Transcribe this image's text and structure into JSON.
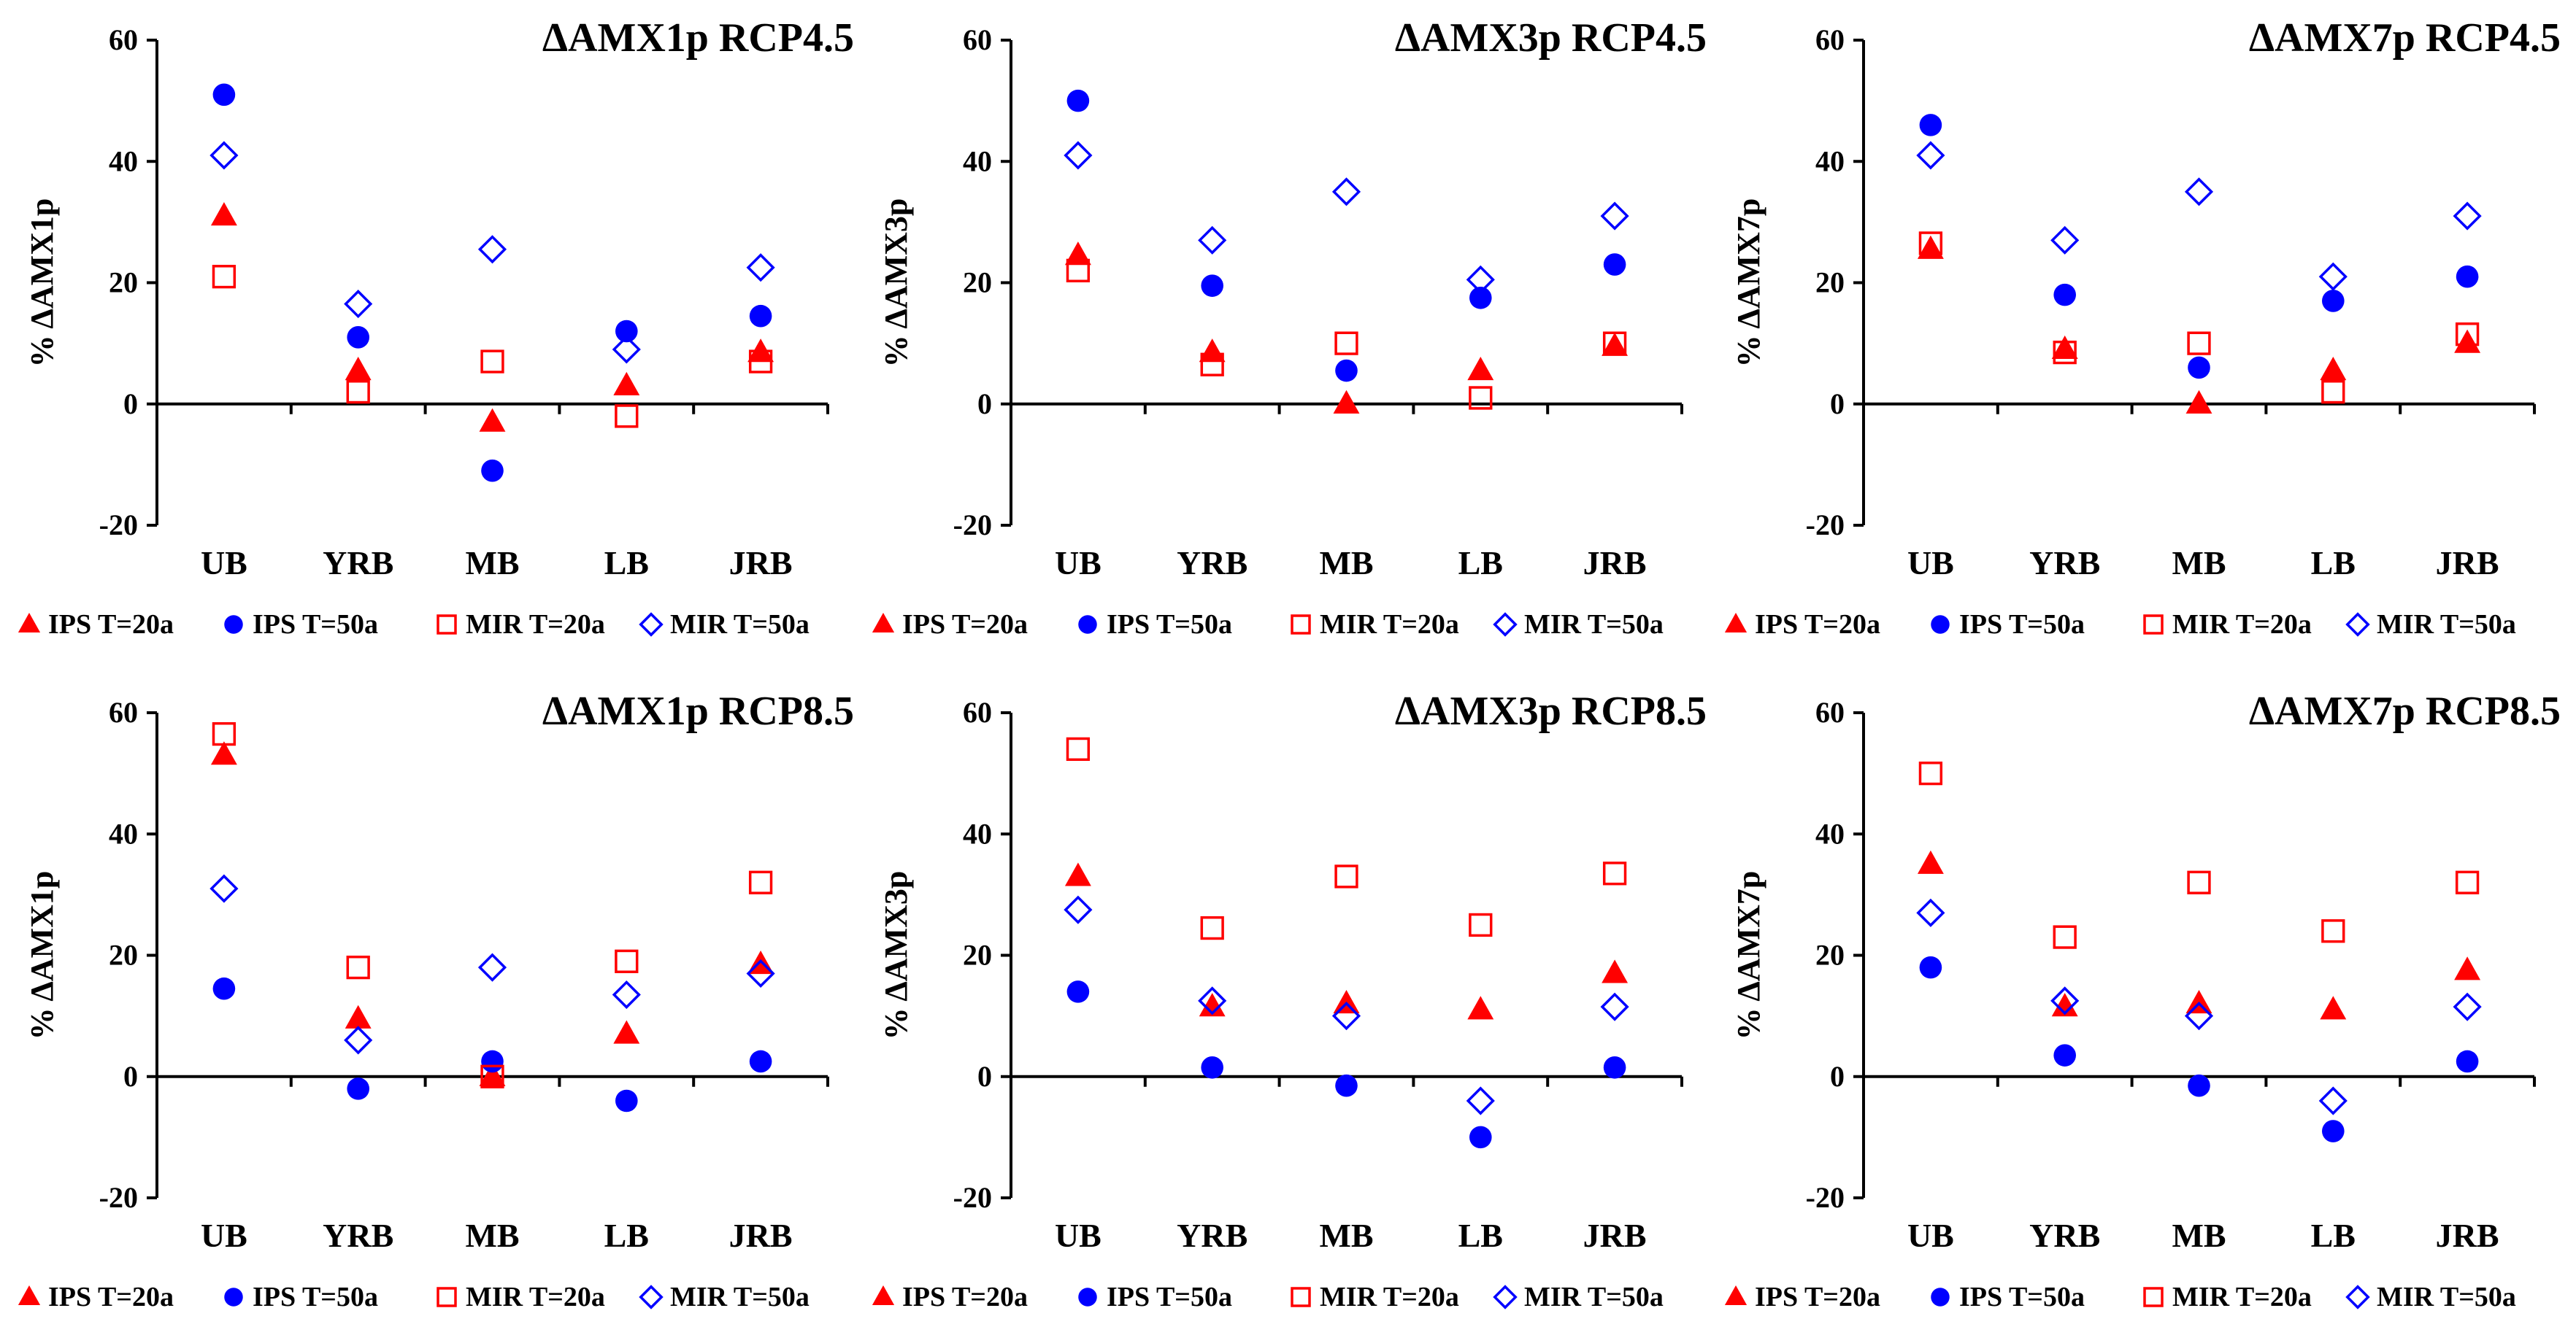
{
  "colors": {
    "ips": "#ff0000",
    "mir_square": "#ff0000",
    "ips_circle": "#0000ff",
    "mir_diamond": "#0000ff",
    "axis": "#000000"
  },
  "chart_data": [
    {
      "type": "scatter",
      "title": "ΔAMX1p RCP4.5",
      "ylabel": "% ΔAMX1p",
      "xlabel": "",
      "ylim": [
        -20,
        60
      ],
      "yticks": [
        "60",
        "40",
        "20",
        "0",
        "-20"
      ],
      "categories": [
        "UB",
        "YRB",
        "MB",
        "LB",
        "JRB"
      ],
      "legend": [
        "IPS T=20a",
        "IPS T=50a",
        "MIR T=20a",
        "MIR T=50a"
      ],
      "series": [
        {
          "name": "IPS T=20a",
          "values": [
            31,
            5.5,
            -3,
            3,
            8.5
          ]
        },
        {
          "name": "IPS T=50a",
          "values": [
            51,
            11,
            -11,
            12,
            14.5
          ]
        },
        {
          "name": "MIR T=20a",
          "values": [
            21,
            2,
            7,
            -2,
            7
          ]
        },
        {
          "name": "MIR T=50a",
          "values": [
            41,
            16.5,
            25.5,
            9,
            22.5
          ]
        }
      ]
    },
    {
      "type": "scatter",
      "title": "ΔAMX3p RCP4.5",
      "ylabel": "% ΔAMX3p",
      "xlabel": "",
      "ylim": [
        -20,
        60
      ],
      "yticks": [
        "60",
        "40",
        "20",
        "0",
        "-20"
      ],
      "categories": [
        "UB",
        "YRB",
        "MB",
        "LB",
        "JRB"
      ],
      "legend": [
        "IPS T=20a",
        "IPS T=50a",
        "MIR T=20a",
        "MIR T=50a"
      ],
      "series": [
        {
          "name": "IPS T=20a",
          "values": [
            24.5,
            8.5,
            0,
            5.5,
            9.5
          ]
        },
        {
          "name": "IPS T=50a",
          "values": [
            50,
            19.5,
            5.5,
            17.5,
            23
          ]
        },
        {
          "name": "MIR T=20a",
          "values": [
            22,
            6.5,
            10,
            1,
            10
          ]
        },
        {
          "name": "MIR T=50a",
          "values": [
            41,
            27,
            35,
            20.5,
            31
          ]
        }
      ]
    },
    {
      "type": "scatter",
      "title": "ΔAMX7p RCP4.5",
      "ylabel": "% ΔAMX7p",
      "xlabel": "",
      "ylim": [
        -20,
        60
      ],
      "yticks": [
        "60",
        "40",
        "20",
        "0",
        "-20"
      ],
      "categories": [
        "UB",
        "YRB",
        "MB",
        "LB",
        "JRB"
      ],
      "legend": [
        "IPS T=20a",
        "IPS T=50a",
        "MIR T=20a",
        "MIR T=50a"
      ],
      "series": [
        {
          "name": "IPS T=20a",
          "values": [
            25.5,
            9,
            0,
            5.5,
            10
          ]
        },
        {
          "name": "IPS T=50a",
          "values": [
            46,
            18,
            6,
            17,
            21
          ]
        },
        {
          "name": "MIR T=20a",
          "values": [
            26.5,
            8.5,
            10,
            2,
            11.5
          ]
        },
        {
          "name": "MIR T=50a",
          "values": [
            41,
            27,
            35,
            21,
            31
          ]
        }
      ]
    },
    {
      "type": "scatter",
      "title": "ΔAMX1p RCP8.5",
      "ylabel": "% ΔAMX1p",
      "xlabel": "",
      "ylim": [
        -20,
        60
      ],
      "yticks": [
        "60",
        "40",
        "20",
        "0",
        "-20"
      ],
      "categories": [
        "UB",
        "YRB",
        "MB",
        "LB",
        "JRB"
      ],
      "legend": [
        "IPS T=20a",
        "IPS T=50a",
        "MIR T=20a",
        "MIR T=50a"
      ],
      "series": [
        {
          "name": "IPS T=20a",
          "values": [
            53,
            9.5,
            0,
            7,
            18.5
          ]
        },
        {
          "name": "IPS T=50a",
          "values": [
            14.5,
            -2,
            2.5,
            -4,
            2.5
          ]
        },
        {
          "name": "MIR T=20a",
          "values": [
            56.5,
            18,
            0,
            19,
            32
          ]
        },
        {
          "name": "MIR T=50a",
          "values": [
            31,
            6,
            18,
            13.5,
            17
          ]
        }
      ]
    },
    {
      "type": "scatter",
      "title": "ΔAMX3p RCP8.5",
      "ylabel": "% ΔAMX3p",
      "xlabel": "",
      "ylim": [
        -20,
        60
      ],
      "yticks": [
        "60",
        "40",
        "20",
        "0",
        "-20"
      ],
      "categories": [
        "UB",
        "YRB",
        "MB",
        "LB",
        "JRB"
      ],
      "legend": [
        "IPS T=20a",
        "IPS T=50a",
        "MIR T=20a",
        "MIR T=50a"
      ],
      "series": [
        {
          "name": "IPS T=20a",
          "values": [
            33,
            11.5,
            12,
            11,
            17
          ]
        },
        {
          "name": "IPS T=50a",
          "values": [
            14,
            1.5,
            -1.5,
            -10,
            1.5
          ]
        },
        {
          "name": "MIR T=20a",
          "values": [
            54,
            24.5,
            33,
            25,
            33.5
          ]
        },
        {
          "name": "MIR T=50a",
          "values": [
            27.5,
            12.5,
            10,
            -4,
            11.5
          ]
        }
      ]
    },
    {
      "type": "scatter",
      "title": "ΔAMX7p RCP8.5",
      "ylabel": "% ΔAMX7p",
      "xlabel": "",
      "ylim": [
        -20,
        60
      ],
      "yticks": [
        "60",
        "40",
        "20",
        "0",
        "-20"
      ],
      "categories": [
        "UB",
        "YRB",
        "MB",
        "LB",
        "JRB"
      ],
      "legend": [
        "IPS T=20a",
        "IPS T=50a",
        "MIR T=20a",
        "MIR T=50a"
      ],
      "series": [
        {
          "name": "IPS T=20a",
          "values": [
            35,
            11.5,
            12,
            11,
            17.5
          ]
        },
        {
          "name": "IPS T=50a",
          "values": [
            18,
            3.5,
            -1.5,
            -9,
            2.5
          ]
        },
        {
          "name": "MIR T=20a",
          "values": [
            50,
            23,
            32,
            24,
            32
          ]
        },
        {
          "name": "MIR T=50a",
          "values": [
            27,
            12.5,
            10,
            -4,
            11.5
          ]
        }
      ]
    }
  ]
}
